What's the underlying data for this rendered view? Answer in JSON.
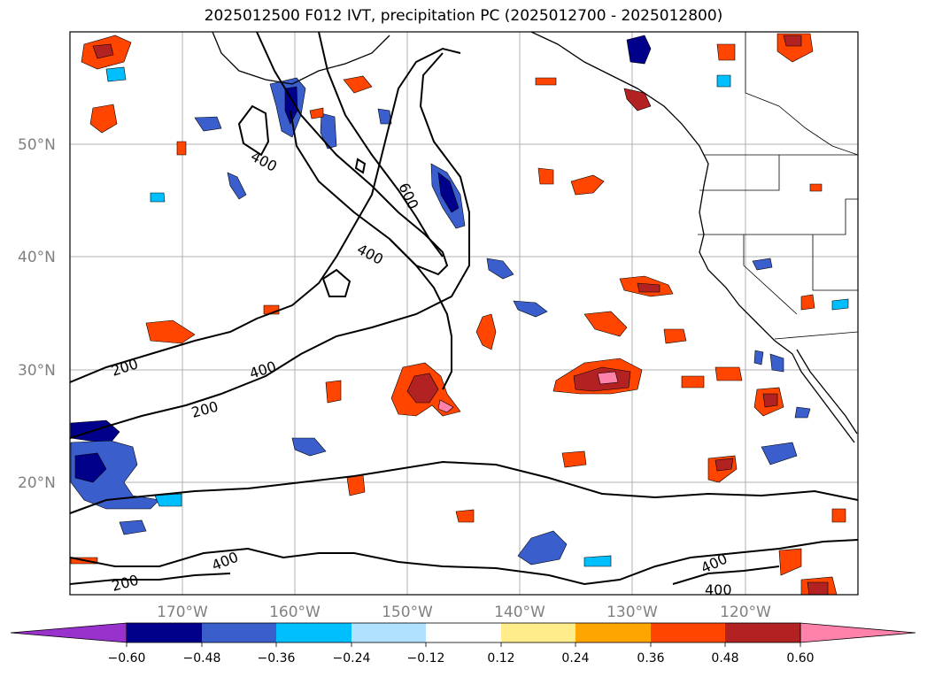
{
  "title": "2025012500 F012 IVT, precipitation PC (2025012700 - 2025012800)",
  "map": {
    "lon_range": [
      -180,
      -110
    ],
    "lat_range": [
      10,
      60
    ],
    "lat_labels": [
      "50°N",
      "40°N",
      "30°N",
      "20°N"
    ],
    "lon_labels": [
      "170°W",
      "160°W",
      "150°W",
      "140°W",
      "130°W",
      "120°W"
    ],
    "contour_labels": [
      "400",
      "600",
      "400",
      "200",
      "400",
      "200",
      "400",
      "200",
      "400",
      "400"
    ],
    "contour_levels": [
      200,
      400,
      600
    ],
    "grid": true
  },
  "colorbar": {
    "ticks": [
      "−0.60",
      "−0.48",
      "−0.36",
      "−0.24",
      "−0.12",
      "0.12",
      "0.24",
      "0.36",
      "0.48",
      "0.60"
    ],
    "colors": [
      "#9932cc",
      "#00008b",
      "#3a5fcd",
      "#00bfff",
      "#b0e2ff",
      "#ffffff",
      "#ffec8b",
      "#ffa500",
      "#ff4500",
      "#b22222",
      "#ff82ab"
    ],
    "extend": "both"
  },
  "colors": {
    "neg_dark": "#00008b",
    "neg_mid": "#3a5fcd",
    "neg_light": "#00bfff",
    "neg_pale": "#b0e2ff",
    "pos_pale": "#ffec8b",
    "pos_light": "#ffa500",
    "pos_mid": "#ff4500",
    "pos_dark": "#b22222",
    "pos_max": "#ff82ab"
  }
}
